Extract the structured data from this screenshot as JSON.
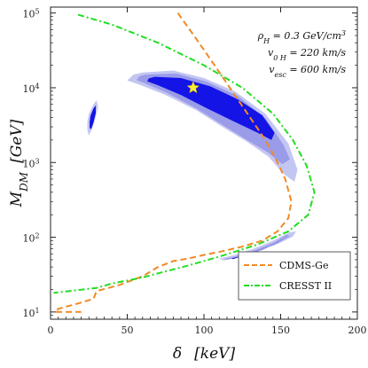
{
  "chart_data": {
    "type": "line",
    "xlabel_symbol": "δ",
    "xlabel_unit": "[keV]",
    "ylabel_symbol": "M",
    "ylabel_sub": "DM",
    "ylabel_unit": "[GeV]",
    "xlim": [
      0,
      200
    ],
    "ylim": [
      8,
      120000
    ],
    "y_scale": "log",
    "x_ticks": [
      0,
      50,
      100,
      150,
      200
    ],
    "y_ticks": [
      {
        "value": 10,
        "base": "10",
        "exp": "1"
      },
      {
        "value": 100,
        "base": "10",
        "exp": "2"
      },
      {
        "value": 1000,
        "base": "10",
        "exp": "3"
      },
      {
        "value": 10000,
        "base": "10",
        "exp": "4"
      },
      {
        "value": 100000,
        "base": "10",
        "exp": "5"
      }
    ],
    "annotations": [
      {
        "lhs": "ρ",
        "sub": "H",
        "rhs": " = 0.3 GeV/cm",
        "sup": "3"
      },
      {
        "lhs": "v",
        "sub": "0 H",
        "rhs": " = 220 km/s",
        "sup": ""
      },
      {
        "lhs": "v",
        "sub": "esc",
        "rhs": " = 600 km/s",
        "sup": ""
      }
    ],
    "series": [
      {
        "name": "CDMS-Ge",
        "color": "#f08a24",
        "dash": "dashed",
        "points": [
          [
            83,
            100000
          ],
          [
            92,
            55000
          ],
          [
            102,
            28000
          ],
          [
            112,
            14000
          ],
          [
            122,
            7000
          ],
          [
            132,
            3500
          ],
          [
            140,
            2000
          ],
          [
            147,
            1100
          ],
          [
            153,
            600
          ],
          [
            157,
            300
          ],
          [
            155,
            180
          ],
          [
            148,
            120
          ],
          [
            138,
            90
          ],
          [
            125,
            75
          ],
          [
            112,
            65
          ],
          [
            100,
            58
          ],
          [
            90,
            52
          ],
          [
            80,
            48
          ],
          [
            70,
            40
          ],
          [
            60,
            30
          ],
          [
            45,
            23
          ],
          [
            30,
            19
          ],
          [
            28,
            15
          ],
          [
            18,
            13
          ],
          [
            5,
            11
          ],
          [
            3,
            10
          ],
          [
            20,
            10
          ]
        ]
      },
      {
        "name": "CRESST II",
        "color": "#22dd22",
        "dash": "dashdot",
        "points": [
          [
            18,
            95000
          ],
          [
            40,
            70000
          ],
          [
            70,
            40000
          ],
          [
            100,
            20000
          ],
          [
            125,
            10000
          ],
          [
            145,
            4500
          ],
          [
            158,
            2000
          ],
          [
            167,
            900
          ],
          [
            172,
            400
          ],
          [
            168,
            200
          ],
          [
            155,
            120
          ],
          [
            135,
            80
          ],
          [
            110,
            55
          ],
          [
            90,
            42
          ],
          [
            75,
            35
          ],
          [
            60,
            29
          ],
          [
            40,
            24
          ],
          [
            30,
            21
          ],
          [
            2,
            18
          ]
        ]
      }
    ],
    "regions": [
      {
        "level": "outer",
        "color": "#c4c6f2",
        "points": [
          [
            60,
            16000
          ],
          [
            80,
            17000
          ],
          [
            100,
            13500
          ],
          [
            120,
            9000
          ],
          [
            140,
            4500
          ],
          [
            155,
            1800
          ],
          [
            161,
            800
          ],
          [
            159,
            550
          ],
          [
            152,
            700
          ],
          [
            142,
            1200
          ],
          [
            128,
            1900
          ],
          [
            112,
            3000
          ],
          [
            95,
            5000
          ],
          [
            75,
            8000
          ],
          [
            58,
            11000
          ],
          [
            50,
            12500
          ],
          [
            54,
            15000
          ]
        ]
      },
      {
        "level": "middle",
        "color": "#9a9cea",
        "points": [
          [
            62,
            15000
          ],
          [
            82,
            15500
          ],
          [
            102,
            12000
          ],
          [
            122,
            7800
          ],
          [
            140,
            3900
          ],
          [
            152,
            1700
          ],
          [
            156,
            1100
          ],
          [
            151,
            950
          ],
          [
            142,
            1350
          ],
          [
            128,
            2000
          ],
          [
            112,
            3200
          ],
          [
            95,
            5300
          ],
          [
            76,
            8500
          ],
          [
            62,
            11300
          ],
          [
            56,
            12700
          ],
          [
            58,
            14300
          ]
        ]
      },
      {
        "level": "inner",
        "color": "#1414e6",
        "points": [
          [
            68,
            14000
          ],
          [
            85,
            13500
          ],
          [
            104,
            10500
          ],
          [
            122,
            7000
          ],
          [
            138,
            4300
          ],
          [
            146,
            2500
          ],
          [
            144,
            2000
          ],
          [
            135,
            2500
          ],
          [
            120,
            3500
          ],
          [
            102,
            5300
          ],
          [
            85,
            8000
          ],
          [
            70,
            10800
          ],
          [
            63,
            12200
          ],
          [
            64,
            13300
          ]
        ]
      },
      {
        "level": "outer",
        "color": "#c4c6f2",
        "points": [
          [
            25,
            4500
          ],
          [
            28,
            6000
          ],
          [
            30,
            6800
          ],
          [
            31,
            5500
          ],
          [
            29,
            3800
          ],
          [
            27,
            2800
          ],
          [
            25,
            2300
          ],
          [
            24,
            2700
          ],
          [
            24,
            3500
          ]
        ]
      },
      {
        "level": "inner",
        "color": "#1414e6",
        "points": [
          [
            26,
            4200
          ],
          [
            28,
            5300
          ],
          [
            29.5,
            5800
          ],
          [
            29.5,
            4600
          ],
          [
            28,
            3400
          ],
          [
            26.5,
            2800
          ],
          [
            25.5,
            2900
          ],
          [
            25.5,
            3500
          ]
        ]
      },
      {
        "level": "outer",
        "color": "#c4c6f2",
        "points": [
          [
            110,
            52
          ],
          [
            120,
            58
          ],
          [
            132,
            70
          ],
          [
            145,
            90
          ],
          [
            155,
            115
          ],
          [
            160,
            120
          ],
          [
            158,
            102
          ],
          [
            150,
            85
          ],
          [
            138,
            68
          ],
          [
            125,
            55
          ],
          [
            113,
            49
          ]
        ]
      },
      {
        "level": "middle",
        "color": "#9a9cea",
        "points": [
          [
            113,
            51
          ],
          [
            123,
            57
          ],
          [
            134,
            68
          ],
          [
            146,
            86
          ],
          [
            154,
            108
          ],
          [
            156,
            104
          ],
          [
            148,
            83
          ],
          [
            136,
            66
          ],
          [
            124,
            55
          ],
          [
            115,
            50
          ]
        ]
      },
      {
        "level": "inner",
        "color": "#1414e6",
        "points": [
          [
            118,
            52
          ],
          [
            128,
            58
          ],
          [
            138,
            68
          ],
          [
            147,
            82
          ],
          [
            151,
            94
          ],
          [
            146,
            80
          ],
          [
            136,
            66
          ],
          [
            126,
            57
          ],
          [
            119,
            51
          ]
        ]
      }
    ],
    "marker": {
      "x": 93,
      "y": 10000,
      "color": "#ffee33",
      "shape": "star"
    },
    "legend": {
      "position": "bottom-right",
      "entries": [
        "CDMS-Ge",
        "CRESST II"
      ]
    },
    "grid": false
  }
}
